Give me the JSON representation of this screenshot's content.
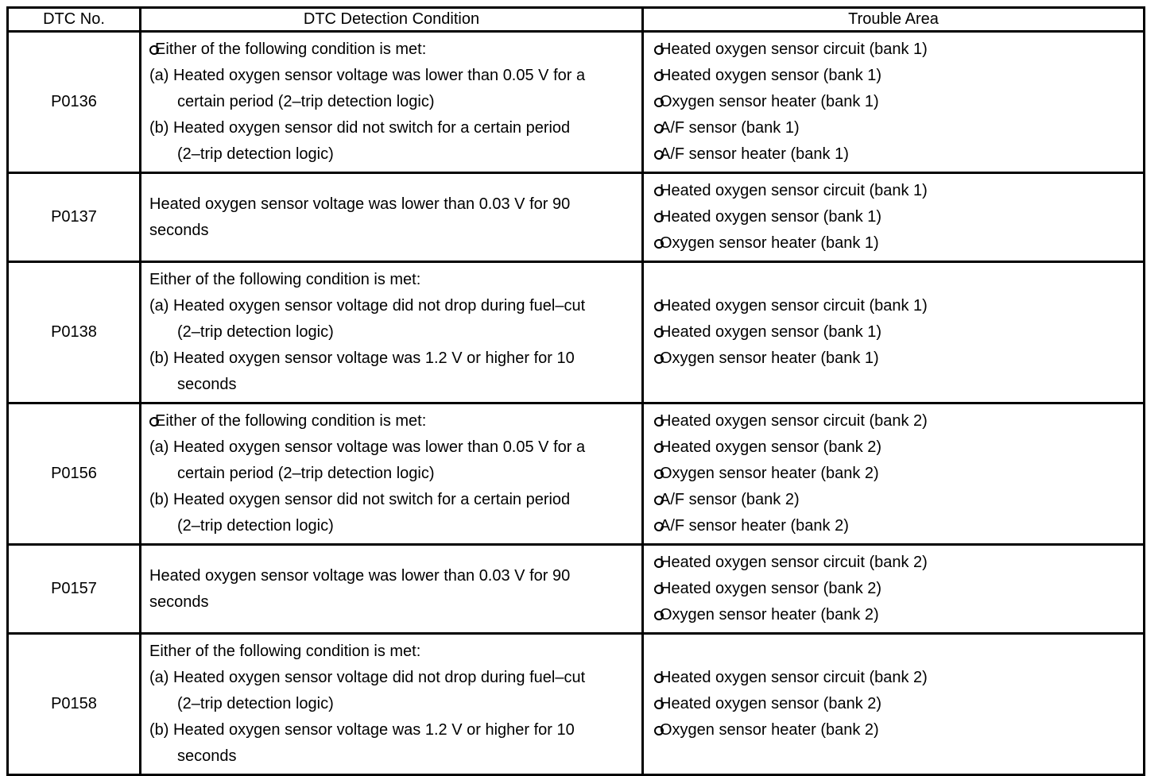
{
  "table": {
    "headers": [
      "DTC No.",
      "DTC Detection Condition",
      "Trouble Area"
    ],
    "rows": [
      {
        "dtc": "P0136",
        "conditions": [
          {
            "bullet": true,
            "indent": 0,
            "text": "Either of the following condition is met:"
          },
          {
            "bullet": false,
            "indent": 0,
            "text": "(a) Heated oxygen sensor voltage was lower than 0.05 V for a"
          },
          {
            "bullet": false,
            "indent": 1,
            "text": "certain period (2–trip detection logic)"
          },
          {
            "bullet": false,
            "indent": 0,
            "text": "(b) Heated oxygen sensor did not switch for a certain period"
          },
          {
            "bullet": false,
            "indent": 1,
            "text": "(2–trip detection logic)"
          }
        ],
        "trouble_areas": [
          "Heated oxygen sensor circuit (bank 1)",
          "Heated oxygen sensor (bank 1)",
          "Oxygen sensor heater (bank 1)",
          "A/F sensor (bank 1)",
          "A/F sensor heater (bank 1)"
        ]
      },
      {
        "dtc": "P0137",
        "conditions": [
          {
            "bullet": false,
            "indent": 0,
            "text": "Heated oxygen sensor voltage was lower than 0.03 V for 90"
          },
          {
            "bullet": false,
            "indent": 0,
            "text": "seconds"
          }
        ],
        "trouble_areas": [
          "Heated oxygen sensor circuit (bank 1)",
          "Heated oxygen sensor (bank 1)",
          "Oxygen sensor heater (bank 1)"
        ]
      },
      {
        "dtc": "P0138",
        "conditions": [
          {
            "bullet": false,
            "indent": 0,
            "text": "Either of the following condition is met:"
          },
          {
            "bullet": false,
            "indent": 0,
            "text": "(a) Heated oxygen sensor voltage did not drop during fuel–cut"
          },
          {
            "bullet": false,
            "indent": 1,
            "text": "(2–trip detection logic)"
          },
          {
            "bullet": false,
            "indent": 0,
            "text": "(b) Heated oxygen sensor voltage was 1.2 V or higher for 10"
          },
          {
            "bullet": false,
            "indent": 1,
            "text": "seconds"
          }
        ],
        "trouble_areas": [
          "Heated oxygen sensor circuit (bank 1)",
          "Heated oxygen sensor (bank 1)",
          "Oxygen sensor heater (bank 1)"
        ]
      },
      {
        "dtc": "P0156",
        "conditions": [
          {
            "bullet": true,
            "indent": 0,
            "text": "Either of the following condition is met:"
          },
          {
            "bullet": false,
            "indent": 0,
            "text": "(a) Heated oxygen sensor voltage was lower than 0.05 V for a"
          },
          {
            "bullet": false,
            "indent": 1,
            "text": "certain period (2–trip detection logic)"
          },
          {
            "bullet": false,
            "indent": 0,
            "text": "(b) Heated oxygen sensor did not switch for a certain period"
          },
          {
            "bullet": false,
            "indent": 1,
            "text": "(2–trip detection logic)"
          }
        ],
        "trouble_areas": [
          "Heated oxygen sensor circuit (bank 2)",
          "Heated oxygen sensor (bank 2)",
          "Oxygen sensor heater (bank 2)",
          "A/F sensor (bank 2)",
          "A/F sensor heater (bank 2)"
        ]
      },
      {
        "dtc": "P0157",
        "conditions": [
          {
            "bullet": false,
            "indent": 0,
            "text": "Heated oxygen sensor voltage was lower than 0.03 V for 90"
          },
          {
            "bullet": false,
            "indent": 0,
            "text": "seconds"
          }
        ],
        "trouble_areas": [
          "Heated oxygen sensor circuit (bank 2)",
          "Heated oxygen sensor (bank 2)",
          "Oxygen sensor heater (bank 2)"
        ]
      },
      {
        "dtc": "P0158",
        "conditions": [
          {
            "bullet": false,
            "indent": 0,
            "text": "Either of the following condition is met:"
          },
          {
            "bullet": false,
            "indent": 0,
            "text": "(a) Heated oxygen sensor voltage did not drop during fuel–cut"
          },
          {
            "bullet": false,
            "indent": 1,
            "text": "(2–trip detection logic)"
          },
          {
            "bullet": false,
            "indent": 0,
            "text": "(b) Heated oxygen sensor voltage was 1.2 V or higher for 10"
          },
          {
            "bullet": false,
            "indent": 1,
            "text": "seconds"
          }
        ],
        "trouble_areas": [
          "Heated oxygen sensor circuit (bank 2)",
          "Heated oxygen sensor (bank 2)",
          "Oxygen sensor heater (bank 2)"
        ]
      }
    ]
  }
}
